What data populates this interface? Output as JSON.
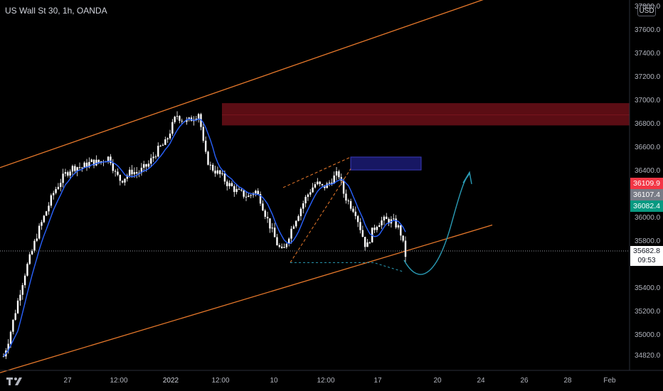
{
  "header": {
    "symbol_line": "US Wall St 30, 1h, OANDA",
    "currency": "USD"
  },
  "price_labels": {
    "red": "36109.9",
    "gray": "36107.4",
    "green": "36082.4",
    "current": "35682.8",
    "countdown": "09:53"
  },
  "colors": {
    "background": "#000000",
    "candle": "#ffffff",
    "moving_average": "#2962ff",
    "channel": "#e8792b",
    "supply_zone": "#6b0f17",
    "order_block": "#1a1a6e",
    "projection": "#2a9bb5",
    "red_label": "#f23645",
    "gray_label": "#787b86",
    "green_label": "#089981"
  },
  "chart_data": {
    "type": "candlestick",
    "symbol": "US Wall St 30",
    "timeframe": "1h",
    "source": "OANDA",
    "y_axis": {
      "ticks": [
        "37800.0",
        "37600.0",
        "37400.0",
        "37200.0",
        "37000.0",
        "36800.0",
        "36600.0",
        "36400.0",
        "36200.0",
        "36000.0",
        "35800.0",
        "35400.0",
        "35200.0",
        "35000.0",
        "34820.0"
      ],
      "range": [
        34700,
        37860
      ]
    },
    "x_axis": {
      "ticks": [
        "27",
        "12:00",
        "2022",
        "12:00",
        "10",
        "12:00",
        "17",
        "20",
        "24",
        "26",
        "28",
        "Feb"
      ]
    },
    "price_path": [
      [
        0,
        34820
      ],
      [
        1,
        34980
      ],
      [
        2,
        35180
      ],
      [
        3,
        35380
      ],
      [
        4,
        35560
      ],
      [
        5,
        35700
      ],
      [
        6,
        35860
      ],
      [
        7,
        35980
      ],
      [
        8,
        36100
      ],
      [
        9,
        36220
      ],
      [
        10,
        36300
      ],
      [
        11,
        36370
      ],
      [
        12,
        36420
      ],
      [
        13,
        36440
      ],
      [
        14,
        36430
      ],
      [
        15,
        36460
      ],
      [
        16,
        36480
      ],
      [
        17,
        36470
      ],
      [
        18,
        36500
      ],
      [
        19,
        36520
      ],
      [
        20,
        36380
      ],
      [
        21,
        36320
      ],
      [
        22,
        36360
      ],
      [
        23,
        36400
      ],
      [
        24,
        36380
      ],
      [
        25,
        36420
      ],
      [
        26,
        36460
      ],
      [
        27,
        36540
      ],
      [
        28,
        36600
      ],
      [
        29,
        36640
      ],
      [
        30,
        36760
      ],
      [
        31,
        36880
      ],
      [
        32,
        36840
      ],
      [
        33,
        36820
      ],
      [
        34,
        36860
      ],
      [
        35,
        36900
      ],
      [
        36,
        36560
      ],
      [
        37,
        36440
      ],
      [
        38,
        36400
      ],
      [
        39,
        36360
      ],
      [
        40,
        36300
      ],
      [
        41,
        36260
      ],
      [
        42,
        36220
      ],
      [
        43,
        36200
      ],
      [
        44,
        36180
      ],
      [
        45,
        36240
      ],
      [
        46,
        36160
      ],
      [
        47,
        36020
      ],
      [
        48,
        35900
      ],
      [
        49,
        35780
      ],
      [
        50,
        35700
      ],
      [
        51,
        35840
      ],
      [
        52,
        35960
      ],
      [
        53,
        36060
      ],
      [
        54,
        36160
      ],
      [
        55,
        36240
      ],
      [
        56,
        36300
      ],
      [
        57,
        36260
      ],
      [
        58,
        36280
      ],
      [
        59,
        36340
      ],
      [
        60,
        36380
      ],
      [
        61,
        36200
      ],
      [
        62,
        36120
      ],
      [
        63,
        36060
      ],
      [
        64,
        35900
      ],
      [
        65,
        35740
      ],
      [
        66,
        35880
      ],
      [
        67,
        35960
      ],
      [
        68,
        35980
      ],
      [
        69,
        35980
      ],
      [
        70,
        35960
      ],
      [
        71,
        35900
      ],
      [
        72,
        35682
      ]
    ],
    "channel": {
      "upper": [
        [
          "start",
          36430
        ],
        [
          "end",
          37890
        ]
      ],
      "lower": [
        [
          "start",
          34680
        ],
        [
          "end",
          35940
        ]
      ]
    },
    "zones": [
      {
        "name": "supply zone",
        "from": 36790,
        "to": 36980
      },
      {
        "name": "order block",
        "from": 36410,
        "to": 36520
      }
    ],
    "current_price": 35682.8,
    "forecast": "dip then rise toward 36380"
  }
}
